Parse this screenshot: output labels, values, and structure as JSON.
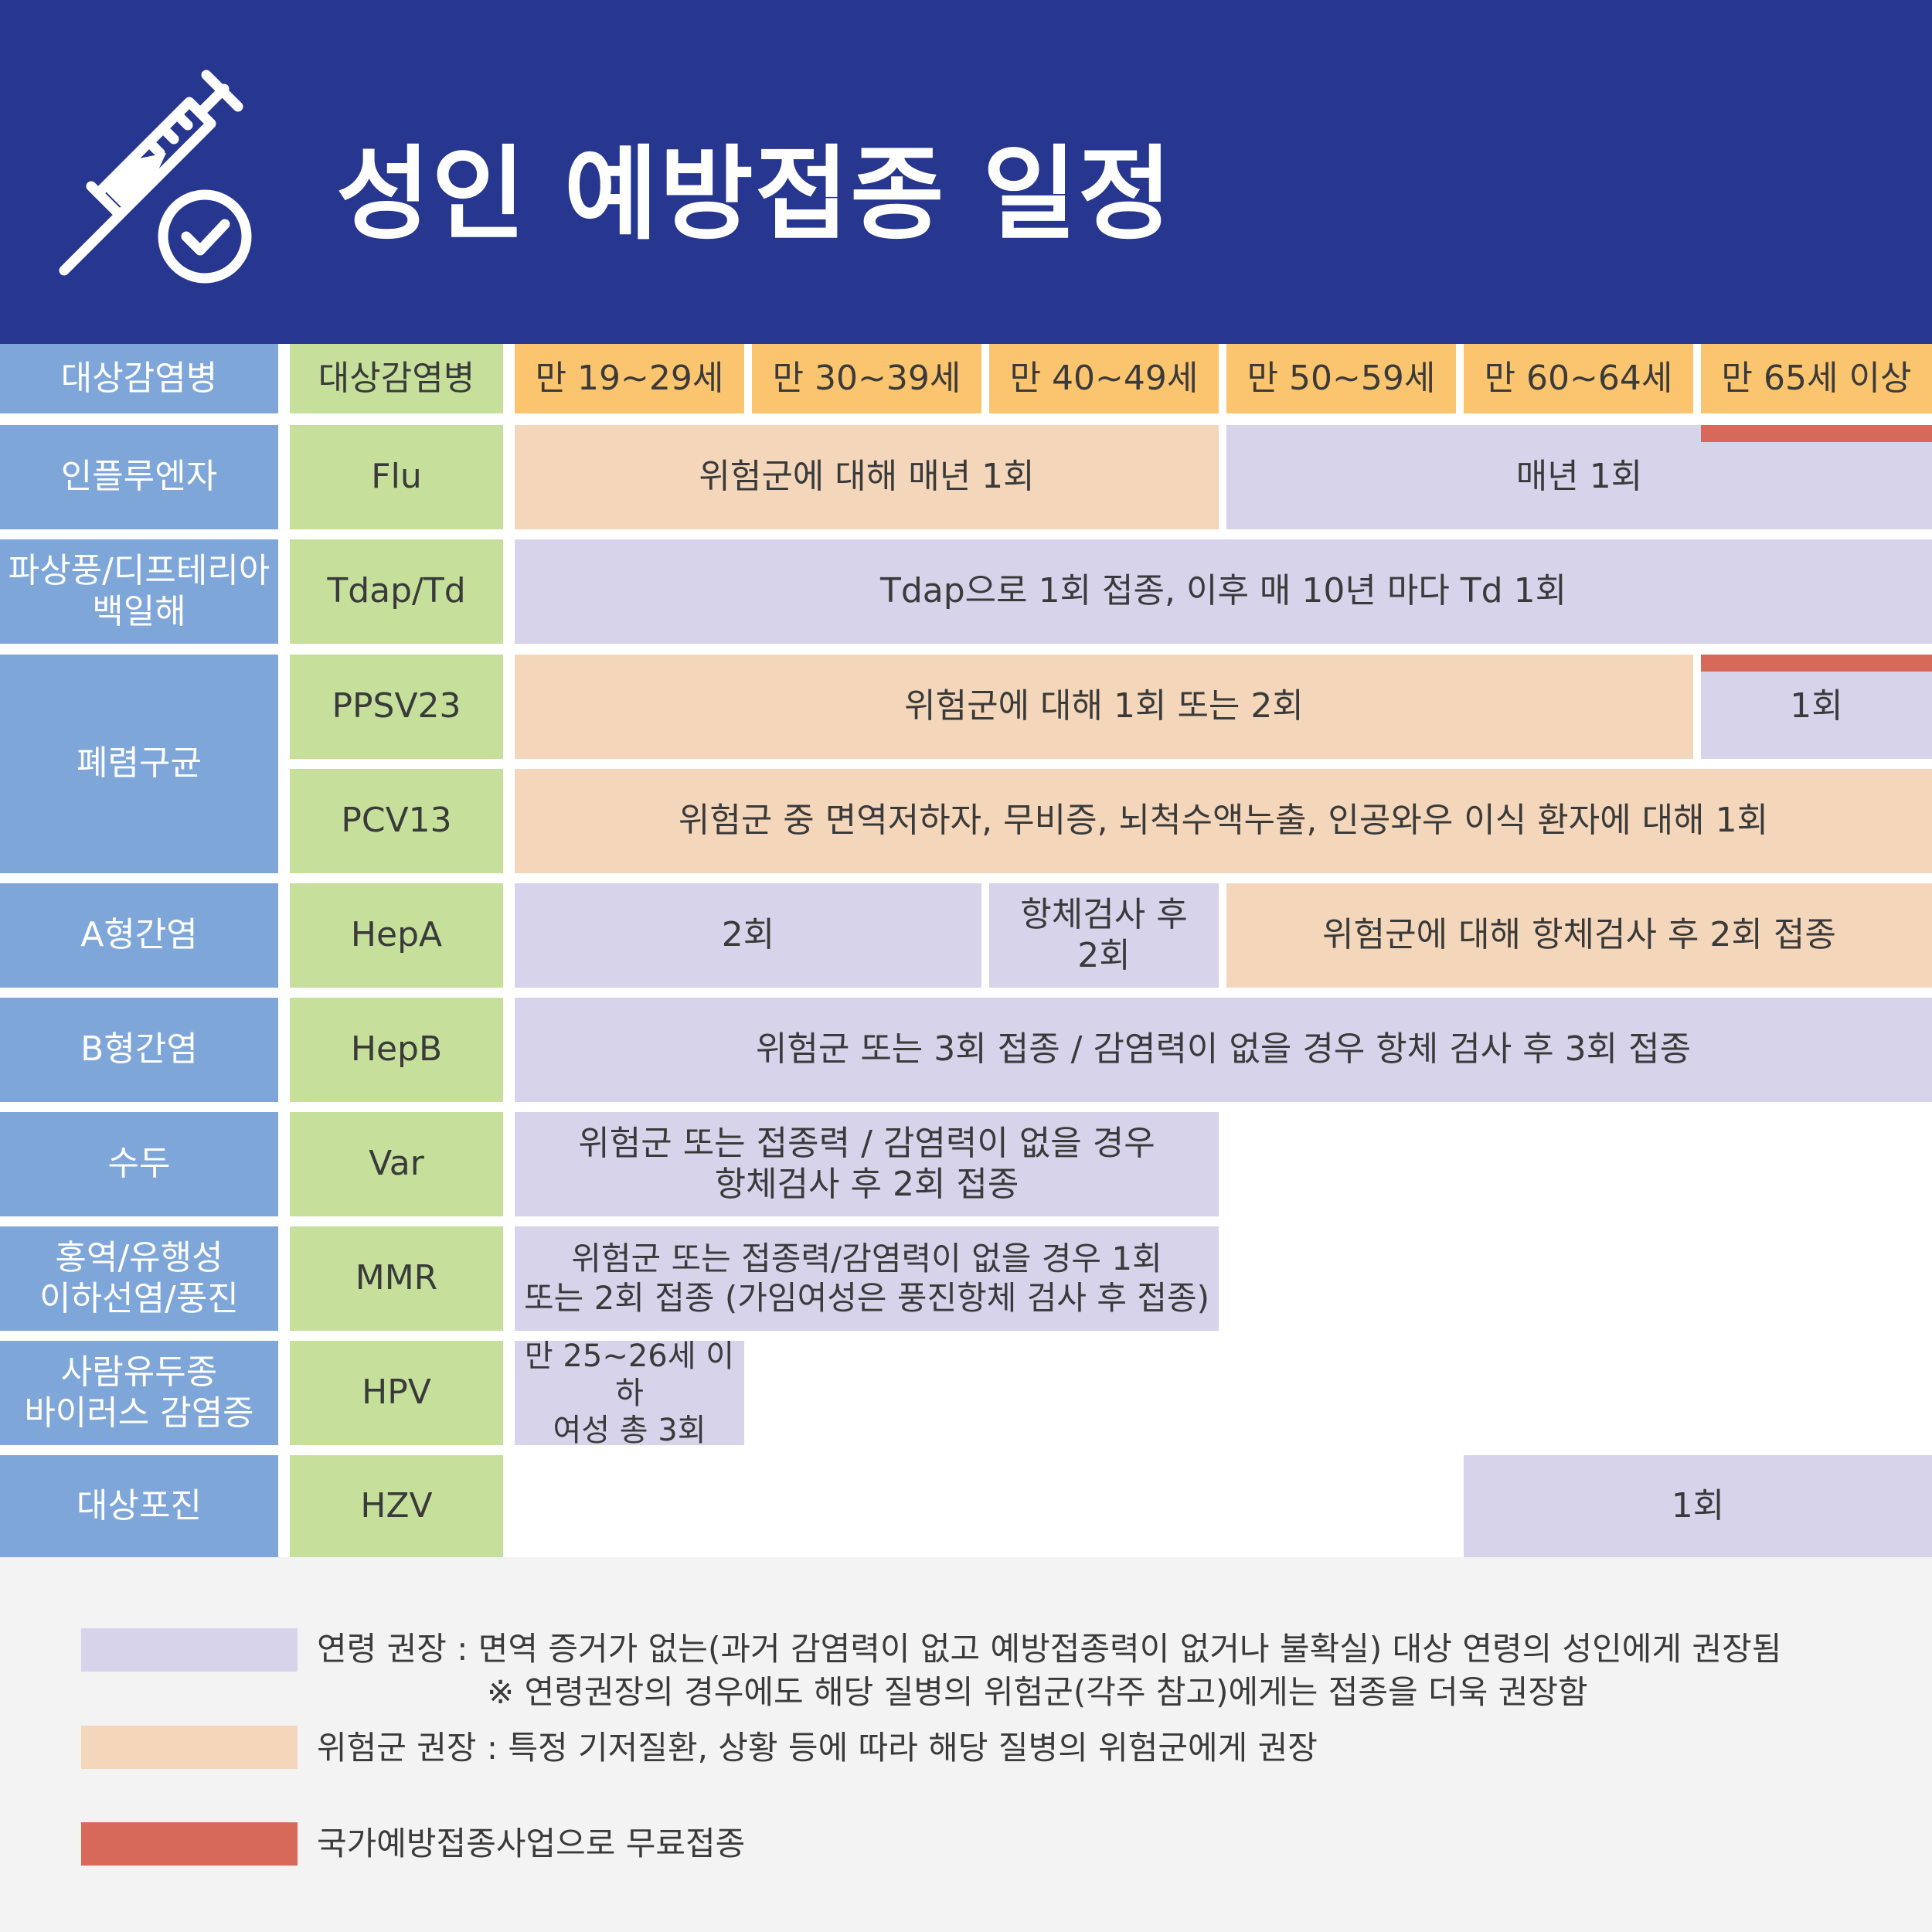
{
  "title": "성인 예방접종 일정",
  "header": {
    "disease_label": "대상감염병",
    "vaccine_label": "대상감염병",
    "ages": [
      "만 19~29세",
      "만 30~39세",
      "만 40~49세",
      "만 50~59세",
      "만 60~64세",
      "만 65세 이상"
    ]
  },
  "rows": {
    "flu": {
      "disease": "인플루엔자",
      "vaccine": "Flu",
      "risk": "위험군에 대해 매년 1회",
      "age": "매년 1회"
    },
    "tdap": {
      "disease_line1": "파상풍/디프테리아",
      "disease_line2": "백일해",
      "vaccine": "Tdap/Td",
      "age": "Tdap으로 1회 접종, 이후 매 10년 마다 Td 1회"
    },
    "pneumo": {
      "disease": "폐렴구균"
    },
    "ppsv": {
      "vaccine": "PPSV23",
      "risk": "위험군에 대해 1회 또는 2회",
      "age": "1회"
    },
    "pcv": {
      "vaccine": "PCV13",
      "risk": "위험군 중 면역저하자, 무비증, 뇌척수액누출, 인공와우 이식 환자에 대해 1회"
    },
    "hepa": {
      "disease": "A형간염",
      "vaccine": "HepA",
      "age": "2회",
      "test_line1": "항체검사 후",
      "test_line2": "2회",
      "risk": "위험군에 대해 항체검사 후 2회 접종"
    },
    "hepb": {
      "disease": "B형간염",
      "vaccine": "HepB",
      "age": "위험군 또는 3회 접종 / 감염력이 없을 경우 항체 검사 후 3회 접종"
    },
    "var": {
      "disease": "수두",
      "vaccine": "Var",
      "age_line1": "위험군 또는 접종력 / 감염력이 없을 경우",
      "age_line2": "항체검사 후 2회 접종"
    },
    "mmr": {
      "disease_line1": "홍역/유행성",
      "disease_line2": "이하선염/풍진",
      "vaccine": "MMR",
      "age_line1": "위험군 또는 접종력/감염력이 없을 경우 1회",
      "age_line2": "또는 2회 접종 (가임여성은 풍진항체 검사 후 접종)"
    },
    "hpv": {
      "disease_line1": "사람유두종",
      "disease_line2": "바이러스 감염증",
      "vaccine": "HPV",
      "age_line1": "만 25~26세 이하",
      "age_line2": "여성 총 3회"
    },
    "hzv": {
      "disease": "대상포진",
      "vaccine": "HZV",
      "age": "1회"
    }
  },
  "legend": {
    "age_line1": "연령 권장 : 면역 증거가 없는(과거 감염력이 없고 예방접종력이 없거나 불확실) 대상 연령의 성인에게 권장됨",
    "age_line2": "※ 연령권장의 경우에도 해당 질병의 위험군(각주 참고)에게는 접종을 더욱 권장함",
    "risk": "위험군 권장 : 특정 기저질환, 상황 등에 따라 해당 질병의 위험군에게 권장",
    "free": "국가예방접종사업으로 무료접종"
  },
  "colors": {
    "header_bg": "#27368e",
    "disease_col": "#7ea6d9",
    "vaccine_col": "#c6e09b",
    "age_header": "#fbc46e",
    "age_recommend": "#d6d3ea",
    "risk_recommend": "#f4d7bb",
    "free_vaccination": "#d7695a"
  },
  "icons": [
    "syringe-icon",
    "check-circle-icon"
  ]
}
